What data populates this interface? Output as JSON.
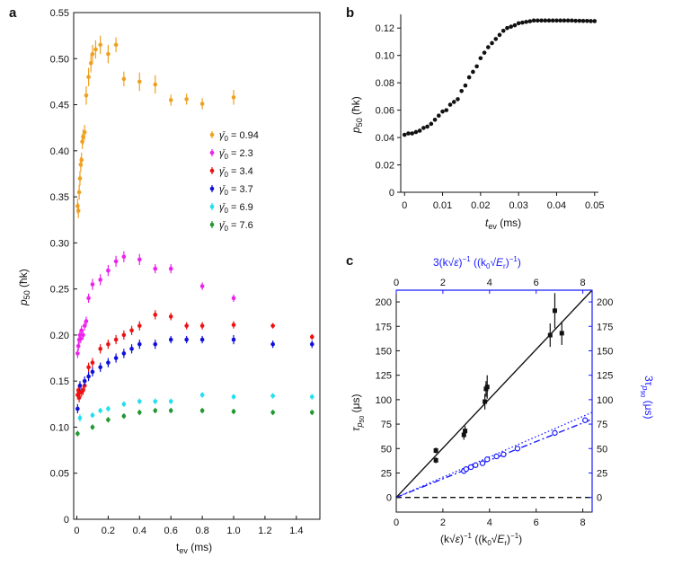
{
  "panel_labels": {
    "a": "a",
    "b": "b",
    "c": "c"
  },
  "colors": {
    "orange": "#f0a020",
    "magenta": "#ee22ee",
    "red": "#ee1111",
    "blue": "#1010dd",
    "cyan": "#22e0ee",
    "green": "#229933",
    "black": "#111111",
    "accent_blue": "#1a1aff"
  },
  "chart_data": [
    {
      "panel": "a",
      "type": "scatter",
      "xlabel_main": "t",
      "xlabel_sub": "ev",
      "xlabel_unit": " (ms)",
      "ylabel_main": "p",
      "ylabel_sub": "50",
      "ylabel_unit": " (ħk)",
      "xlim": [
        -0.02,
        1.55
      ],
      "ylim": [
        0,
        0.55
      ],
      "xticks": [
        0,
        0.2,
        0.4,
        0.6,
        0.8,
        1.0,
        1.2,
        1.4
      ],
      "xtick_labels": [
        "0",
        "0.2",
        "0.4",
        "0.6",
        "0.8",
        "1.0",
        "1.2",
        "1.4"
      ],
      "yticks": [
        0,
        0.05,
        0.1,
        0.15,
        0.2,
        0.25,
        0.3,
        0.35,
        0.4,
        0.45,
        0.5,
        0.55
      ],
      "ytick_labels": [
        "0",
        "0.05",
        "0.10",
        "0.15",
        "0.20",
        "0.25",
        "0.30",
        "0.35",
        "0.40",
        "0.45",
        "0.50",
        "0.55"
      ],
      "legend_position": "center-right",
      "series": [
        {
          "name": "γ̄0 = 0.94",
          "legend_prefix": "γ̄",
          "legend_sub": "0",
          "legend_value": " = 0.94",
          "color": "#f0a020",
          "x": [
            0.005,
            0.01,
            0.015,
            0.02,
            0.025,
            0.03,
            0.035,
            0.04,
            0.05,
            0.06,
            0.075,
            0.09,
            0.1,
            0.12,
            0.15,
            0.2,
            0.25,
            0.3,
            0.4,
            0.5,
            0.6,
            0.7,
            0.8,
            1.0
          ],
          "y": [
            0.34,
            0.335,
            0.355,
            0.37,
            0.385,
            0.39,
            0.41,
            0.415,
            0.42,
            0.46,
            0.48,
            0.495,
            0.505,
            0.51,
            0.515,
            0.505,
            0.515,
            0.478,
            0.475,
            0.472,
            0.455,
            0.456,
            0.451,
            0.458
          ],
          "err": [
            0.008,
            0.008,
            0.008,
            0.008,
            0.008,
            0.008,
            0.008,
            0.008,
            0.008,
            0.01,
            0.01,
            0.01,
            0.01,
            0.01,
            0.01,
            0.01,
            0.008,
            0.008,
            0.01,
            0.01,
            0.006,
            0.006,
            0.006,
            0.008
          ]
        },
        {
          "name": "γ̄0 = 2.3",
          "legend_prefix": "γ̄",
          "legend_sub": "0",
          "legend_value": " = 2.3",
          "color": "#ee22ee",
          "x": [
            0.005,
            0.01,
            0.015,
            0.02,
            0.025,
            0.03,
            0.04,
            0.05,
            0.06,
            0.075,
            0.1,
            0.15,
            0.2,
            0.25,
            0.3,
            0.4,
            0.5,
            0.6,
            0.8,
            1.0
          ],
          "y": [
            0.18,
            0.188,
            0.195,
            0.2,
            0.196,
            0.205,
            0.2,
            0.21,
            0.215,
            0.24,
            0.255,
            0.26,
            0.27,
            0.28,
            0.285,
            0.282,
            0.272,
            0.272,
            0.253,
            0.24
          ],
          "err": [
            0.005,
            0.005,
            0.005,
            0.005,
            0.005,
            0.005,
            0.005,
            0.005,
            0.005,
            0.005,
            0.006,
            0.006,
            0.006,
            0.006,
            0.006,
            0.006,
            0.005,
            0.005,
            0.004,
            0.004
          ]
        },
        {
          "name": "γ̄0 = 3.4",
          "legend_prefix": "γ̄",
          "legend_sub": "0",
          "legend_value": " = 3.4",
          "color": "#ee1111",
          "x": [
            0.005,
            0.01,
            0.015,
            0.02,
            0.03,
            0.04,
            0.05,
            0.075,
            0.1,
            0.15,
            0.2,
            0.25,
            0.3,
            0.35,
            0.4,
            0.5,
            0.6,
            0.7,
            0.8,
            1.0,
            1.25,
            1.5
          ],
          "y": [
            0.135,
            0.14,
            0.132,
            0.138,
            0.138,
            0.14,
            0.145,
            0.165,
            0.17,
            0.185,
            0.19,
            0.195,
            0.2,
            0.205,
            0.21,
            0.222,
            0.22,
            0.21,
            0.21,
            0.211,
            0.21,
            0.198
          ],
          "err": [
            0.005,
            0.005,
            0.005,
            0.005,
            0.005,
            0.005,
            0.005,
            0.005,
            0.005,
            0.005,
            0.005,
            0.005,
            0.005,
            0.005,
            0.005,
            0.005,
            0.004,
            0.004,
            0.004,
            0.004,
            0.003,
            0.003
          ]
        },
        {
          "name": "γ̄0 = 3.7",
          "legend_prefix": "γ̄",
          "legend_sub": "0",
          "legend_value": " = 3.7",
          "color": "#1010dd",
          "x": [
            0.005,
            0.02,
            0.05,
            0.075,
            0.1,
            0.15,
            0.2,
            0.25,
            0.3,
            0.35,
            0.4,
            0.5,
            0.6,
            0.7,
            0.8,
            1.0,
            1.25,
            1.5
          ],
          "y": [
            0.12,
            0.145,
            0.15,
            0.155,
            0.16,
            0.165,
            0.17,
            0.175,
            0.18,
            0.185,
            0.19,
            0.19,
            0.195,
            0.195,
            0.195,
            0.195,
            0.19,
            0.19
          ],
          "err": [
            0.005,
            0.005,
            0.005,
            0.005,
            0.005,
            0.005,
            0.005,
            0.005,
            0.005,
            0.005,
            0.005,
            0.005,
            0.004,
            0.004,
            0.004,
            0.005,
            0.004,
            0.004
          ]
        },
        {
          "name": "γ̄0 = 6.9",
          "legend_prefix": "γ̄",
          "legend_sub": "0",
          "legend_value": " = 6.9",
          "color": "#22e0ee",
          "x": [
            0.02,
            0.1,
            0.15,
            0.2,
            0.3,
            0.4,
            0.5,
            0.6,
            0.8,
            1.0,
            1.25,
            1.5
          ],
          "y": [
            0.11,
            0.113,
            0.118,
            0.12,
            0.125,
            0.128,
            0.128,
            0.128,
            0.135,
            0.133,
            0.134,
            0.133
          ],
          "err": [
            0.004,
            0.003,
            0.003,
            0.003,
            0.003,
            0.003,
            0.003,
            0.003,
            0.003,
            0.003,
            0.003,
            0.003
          ]
        },
        {
          "name": "γ̄0 = 7.6",
          "legend_prefix": "γ̄",
          "legend_sub": "0",
          "legend_value": " = 7.6",
          "color": "#229933",
          "x": [
            0.005,
            0.1,
            0.2,
            0.3,
            0.4,
            0.5,
            0.6,
            0.8,
            1.0,
            1.25,
            1.5
          ],
          "y": [
            0.093,
            0.1,
            0.108,
            0.112,
            0.116,
            0.118,
            0.118,
            0.118,
            0.117,
            0.116,
            0.116
          ],
          "err": [
            0.003,
            0.003,
            0.003,
            0.003,
            0.003,
            0.003,
            0.003,
            0.003,
            0.003,
            0.003,
            0.003
          ]
        }
      ]
    },
    {
      "panel": "b",
      "type": "scatter",
      "xlabel_main": "t",
      "xlabel_sub": "ev",
      "xlabel_unit": " (ms)",
      "ylabel_main": "p",
      "ylabel_sub": "50",
      "ylabel_unit": " (ħk)",
      "xlim": [
        -0.001,
        0.051
      ],
      "ylim": [
        0,
        0.13
      ],
      "xticks": [
        0,
        0.01,
        0.02,
        0.03,
        0.04,
        0.05
      ],
      "xtick_labels": [
        "0",
        "0.01",
        "0.02",
        "0.03",
        "0.04",
        "0.05"
      ],
      "yticks": [
        0,
        0.02,
        0.04,
        0.06,
        0.08,
        0.1,
        0.12
      ],
      "ytick_labels": [
        "0",
        "0.02",
        "0.04",
        "0.06",
        "0.08",
        "0.10",
        "0.12"
      ],
      "series": [
        {
          "name": "p50",
          "color": "#111111",
          "x": [
            0,
            0.001,
            0.002,
            0.003,
            0.004,
            0.005,
            0.006,
            0.007,
            0.008,
            0.009,
            0.01,
            0.011,
            0.012,
            0.013,
            0.014,
            0.015,
            0.016,
            0.017,
            0.018,
            0.019,
            0.02,
            0.021,
            0.022,
            0.023,
            0.024,
            0.025,
            0.026,
            0.027,
            0.028,
            0.029,
            0.03,
            0.031,
            0.032,
            0.033,
            0.034,
            0.035,
            0.036,
            0.037,
            0.038,
            0.039,
            0.04,
            0.041,
            0.042,
            0.043,
            0.044,
            0.045,
            0.046,
            0.047,
            0.048,
            0.049,
            0.05
          ],
          "y": [
            0.042,
            0.043,
            0.043,
            0.044,
            0.045,
            0.047,
            0.048,
            0.05,
            0.053,
            0.056,
            0.059,
            0.06,
            0.064,
            0.066,
            0.068,
            0.074,
            0.078,
            0.084,
            0.088,
            0.092,
            0.098,
            0.102,
            0.106,
            0.109,
            0.112,
            0.115,
            0.118,
            0.12,
            0.121,
            0.122,
            0.1235,
            0.124,
            0.1245,
            0.125,
            0.1255,
            0.1255,
            0.1255,
            0.1255,
            0.1255,
            0.1255,
            0.1255,
            0.1255,
            0.1255,
            0.1255,
            0.1255,
            0.1253,
            0.1253,
            0.1252,
            0.1252,
            0.1251,
            0.1251
          ]
        }
      ]
    },
    {
      "panel": "c",
      "type": "scatter",
      "xlabel": "(k√ε)⁻¹ ((k₀√E_r)⁻¹)",
      "xlabel_bottom_parts": [
        "(k",
        "√ε",
        ")",
        "−1",
        " ((k",
        "0",
        "√",
        "E",
        "r",
        ")",
        "−1",
        ")"
      ],
      "xlabel_top_parts": [
        "3(k",
        "√ε",
        ")",
        "−1",
        " ((k",
        "0",
        "√",
        "E",
        "r",
        ")",
        "−1",
        ")"
      ],
      "ylabel_left_parts": [
        "τ",
        "p",
        "50",
        " (μs)"
      ],
      "ylabel_right_parts": [
        "3τ",
        "p",
        "90",
        " (μs)"
      ],
      "xlim": [
        0,
        8.4
      ],
      "ylim": [
        -15,
        212
      ],
      "xticks": [
        0,
        2,
        4,
        6,
        8
      ],
      "xtick_labels": [
        "0",
        "2",
        "4",
        "6",
        "8"
      ],
      "yticks_left": [
        0,
        25,
        50,
        75,
        100,
        125,
        150,
        175,
        200
      ],
      "ytick_labels_left": [
        "0",
        "25",
        "50",
        "75",
        "100",
        "125",
        "150",
        "175",
        "200"
      ],
      "yticks_right": [
        0,
        25,
        50,
        75,
        100,
        125,
        150,
        175,
        200
      ],
      "ytick_labels_right": [
        "0",
        "25",
        "50",
        "75",
        "100",
        "125",
        "150",
        "175",
        "200"
      ],
      "fit_black": {
        "x": [
          0,
          8.4
        ],
        "y": [
          0,
          212
        ]
      },
      "fit_blue_dashdot": {
        "x": [
          0,
          8.4
        ],
        "y": [
          0,
          80
        ]
      },
      "fit_blue_dotted": {
        "x": [
          0,
          8.4
        ],
        "y": [
          0,
          87
        ]
      },
      "zero_line_y": 0,
      "series": [
        {
          "name": "tau_p50",
          "color": "#111111",
          "marker": "square",
          "x": [
            1.7,
            1.7,
            2.9,
            2.95,
            3.8,
            3.85,
            3.9,
            6.6,
            6.8,
            7.1
          ],
          "y": [
            48,
            38,
            64,
            68,
            98,
            111,
            113,
            166,
            191,
            168
          ],
          "err": [
            3,
            3,
            5,
            5,
            8,
            8,
            12,
            12,
            18,
            12
          ]
        },
        {
          "name": "3tau_p90",
          "color": "#1a1aff",
          "marker": "circle",
          "x": [
            2.9,
            3.0,
            3.2,
            3.4,
            3.7,
            3.9,
            4.3,
            4.6,
            5.2,
            6.8,
            8.1
          ],
          "y": [
            27,
            29,
            31,
            33,
            35,
            39,
            42,
            44,
            50,
            66,
            79
          ],
          "err": [
            2,
            2,
            2,
            2,
            2,
            2,
            2,
            2,
            2,
            2,
            2
          ]
        }
      ]
    }
  ]
}
